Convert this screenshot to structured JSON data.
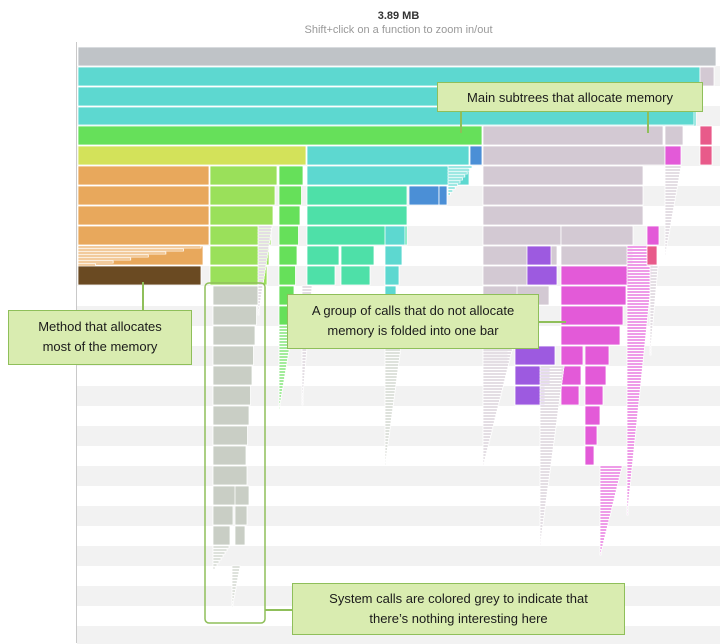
{
  "header": {
    "total_memory": "3.89 MB",
    "hint": "Shift+click on a function to zoom in/out"
  },
  "callouts": {
    "main_subtrees": "Main subtrees that allocate memory",
    "method_line1": "Method that allocates",
    "method_line2": "most of the memory",
    "group_line1": "A group of calls that do not allocate",
    "group_line2": "memory is folded into one bar",
    "system_line1": "System calls are colored grey to indicate that",
    "system_line2": "there’s nothing interesting here"
  },
  "colors": {
    "frame_border": "#c9c9c9",
    "stripe": "#f2f2f2",
    "root_bar": "#bfc3c7",
    "teal": "#5dd8d0",
    "green": "#66e05a",
    "yellow_green": "#d3e25a",
    "orange": "#e8a85c",
    "brown": "#6a4a22",
    "light_green": "#9ae05a",
    "mint": "#4ee0a8",
    "lavender": "#d3c9d3",
    "magenta": "#e35ad8",
    "purple": "#9d5ae0",
    "blue": "#4b8fd6",
    "pink": "#e85a8a",
    "system_grey": "#c9cec5",
    "callout_bg": "#d9ecb0",
    "callout_border": "#8fbf5a"
  }
}
